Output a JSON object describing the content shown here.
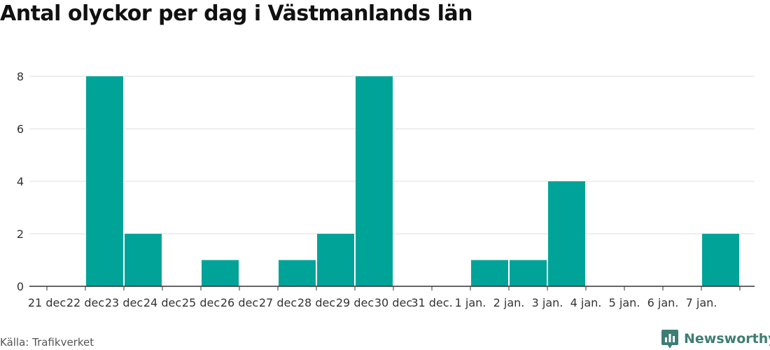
{
  "chart_data": {
    "type": "bar",
    "title": "Antal olyckor per dag i Västmanlands län",
    "xlabel": "",
    "ylabel": "",
    "categories": [
      "21 dec",
      "22 dec",
      "23 dec",
      "24 dec",
      "25 dec",
      "26 dec",
      "27 dec",
      "28 dec",
      "29 dec",
      "30 dec",
      "31 dec.",
      "1 jan.",
      "2 jan.",
      "3 jan.",
      "4 jan.",
      "5 jan.",
      "6 jan.",
      "7 jan."
    ],
    "values": [
      0,
      8,
      2,
      0,
      1,
      0,
      1,
      2,
      8,
      0,
      0,
      1,
      1,
      4,
      0,
      0,
      0,
      2
    ],
    "yticks": [
      0,
      2,
      4,
      6,
      8
    ],
    "ylim": [
      0,
      8
    ],
    "grid": true,
    "bar_color": "#00a398"
  },
  "footer": {
    "source": "Källa: Trafikverket",
    "brand": "Newsworthy",
    "brand_color": "#3d7d74",
    "brand_icon": "newsworthy-bar-chart-icon"
  }
}
